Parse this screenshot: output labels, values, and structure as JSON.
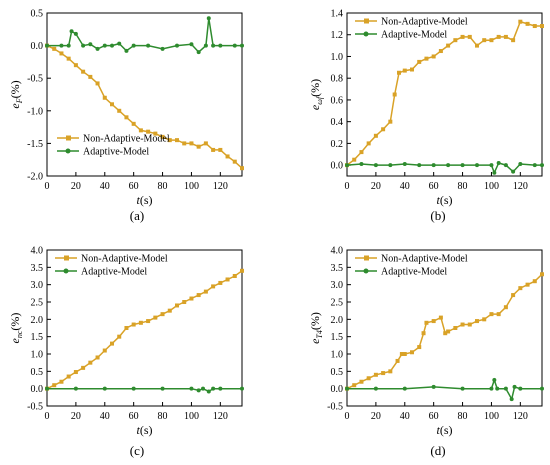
{
  "chart_data": [
    {
      "type": "line",
      "caption": "(a)",
      "ylabel_main": "e",
      "ylabel_sub": "F",
      "ylabel_suffix": "(%)",
      "xlabel_main": "t",
      "xlabel_suffix": "(s)",
      "xlim": [
        0,
        135
      ],
      "ylim": [
        -2.0,
        0.5
      ],
      "xticks": [
        0,
        20,
        40,
        60,
        80,
        100,
        120
      ],
      "yticks": [
        0.5,
        0.0,
        -0.5,
        -1.0,
        -1.5,
        -2.0
      ],
      "ytick_labels": [
        "0.5",
        "0.0",
        "-0.5",
        "-1.0",
        "-1.5",
        "-2.0"
      ],
      "legend_position": "bottom-left",
      "series": [
        {
          "name": "Non-Adaptive-Model",
          "color": "#D9A227",
          "marker": "square",
          "x": [
            0,
            5,
            10,
            15,
            20,
            25,
            30,
            35,
            40,
            45,
            50,
            55,
            60,
            65,
            70,
            75,
            80,
            85,
            90,
            95,
            100,
            105,
            110,
            115,
            120,
            125,
            130,
            135
          ],
          "y": [
            0.0,
            -0.05,
            -0.12,
            -0.2,
            -0.3,
            -0.4,
            -0.48,
            -0.58,
            -0.8,
            -0.9,
            -1.0,
            -1.1,
            -1.2,
            -1.3,
            -1.32,
            -1.35,
            -1.4,
            -1.45,
            -1.45,
            -1.5,
            -1.5,
            -1.55,
            -1.5,
            -1.6,
            -1.6,
            -1.7,
            -1.78,
            -1.88
          ]
        },
        {
          "name": "Adaptive-Model",
          "color": "#2E8B2E",
          "marker": "circle",
          "x": [
            0,
            10,
            15,
            17,
            20,
            25,
            30,
            35,
            40,
            45,
            50,
            55,
            60,
            70,
            80,
            90,
            100,
            105,
            110,
            112,
            115,
            120,
            130,
            135
          ],
          "y": [
            0.0,
            0.0,
            0.0,
            0.22,
            0.18,
            0.0,
            0.02,
            -0.05,
            0.0,
            0.0,
            0.03,
            -0.08,
            0.0,
            0.0,
            -0.05,
            0.0,
            0.02,
            -0.1,
            0.0,
            0.42,
            0.0,
            0.0,
            0.0,
            0.0
          ]
        }
      ]
    },
    {
      "type": "line",
      "caption": "(b)",
      "ylabel_main": "e",
      "ylabel_sub": "ωf",
      "ylabel_suffix": "(%)",
      "xlabel_main": "t",
      "xlabel_suffix": "(s)",
      "xlim": [
        0,
        135
      ],
      "ylim": [
        -0.1,
        1.4
      ],
      "xticks": [
        0,
        20,
        40,
        60,
        80,
        100,
        120
      ],
      "yticks": [
        0.0,
        0.2,
        0.4,
        0.6,
        0.8,
        1.0,
        1.2,
        1.4
      ],
      "ytick_labels": [
        "0.0",
        "0.2",
        "0.4",
        "0.6",
        "0.8",
        "1.0",
        "1.2",
        "1.4"
      ],
      "legend_position": "top-left",
      "series": [
        {
          "name": "Non-Adaptive-Model",
          "color": "#D9A227",
          "marker": "square",
          "x": [
            0,
            5,
            10,
            15,
            20,
            25,
            30,
            33,
            36,
            40,
            45,
            50,
            55,
            60,
            65,
            70,
            75,
            80,
            85,
            90,
            95,
            100,
            105,
            110,
            115,
            120,
            125,
            130,
            135
          ],
          "y": [
            0.0,
            0.05,
            0.12,
            0.2,
            0.27,
            0.33,
            0.4,
            0.65,
            0.85,
            0.87,
            0.88,
            0.95,
            0.98,
            1.0,
            1.05,
            1.1,
            1.15,
            1.18,
            1.18,
            1.1,
            1.15,
            1.15,
            1.18,
            1.18,
            1.15,
            1.32,
            1.3,
            1.28,
            1.28
          ]
        },
        {
          "name": "Adaptive-Model",
          "color": "#2E8B2E",
          "marker": "circle",
          "x": [
            0,
            10,
            20,
            30,
            40,
            50,
            60,
            70,
            80,
            90,
            100,
            102,
            105,
            110,
            115,
            120,
            130,
            135
          ],
          "y": [
            0.0,
            0.01,
            0.0,
            0.0,
            0.01,
            0.0,
            0.0,
            0.0,
            0.0,
            0.0,
            0.0,
            -0.07,
            0.02,
            0.0,
            -0.06,
            0.01,
            0.0,
            0.0
          ]
        }
      ]
    },
    {
      "type": "line",
      "caption": "(c)",
      "ylabel_main": "e",
      "ylabel_sub": "nc",
      "ylabel_suffix": "(%)",
      "xlabel_main": "t",
      "xlabel_suffix": "(s)",
      "xlim": [
        0,
        135
      ],
      "ylim": [
        -0.5,
        4.0
      ],
      "xticks": [
        0,
        20,
        40,
        60,
        80,
        100,
        120
      ],
      "yticks": [
        -0.5,
        0.0,
        0.5,
        1.0,
        1.5,
        2.0,
        2.5,
        3.0,
        3.5,
        4.0
      ],
      "ytick_labels": [
        "-0.5",
        "0.0",
        "0.5",
        "1.0",
        "1.5",
        "2.0",
        "2.5",
        "3.0",
        "3.5",
        "4.0"
      ],
      "legend_position": "top-left",
      "series": [
        {
          "name": "Non-Adaptive-Model",
          "color": "#D9A227",
          "marker": "square",
          "x": [
            0,
            5,
            10,
            15,
            20,
            25,
            30,
            35,
            40,
            45,
            50,
            55,
            60,
            65,
            70,
            75,
            80,
            85,
            90,
            95,
            100,
            105,
            110,
            115,
            120,
            125,
            130,
            135
          ],
          "y": [
            0.0,
            0.1,
            0.2,
            0.35,
            0.48,
            0.6,
            0.75,
            0.9,
            1.1,
            1.3,
            1.5,
            1.75,
            1.85,
            1.9,
            1.95,
            2.05,
            2.15,
            2.25,
            2.4,
            2.5,
            2.6,
            2.7,
            2.8,
            2.95,
            3.05,
            3.15,
            3.25,
            3.4
          ]
        },
        {
          "name": "Adaptive-Model",
          "color": "#2E8B2E",
          "marker": "circle",
          "x": [
            0,
            20,
            40,
            60,
            80,
            100,
            105,
            108,
            112,
            115,
            120,
            135
          ],
          "y": [
            0.0,
            0.0,
            0.0,
            0.0,
            0.0,
            0.0,
            -0.05,
            0.0,
            -0.08,
            0.0,
            0.0,
            0.0
          ]
        }
      ]
    },
    {
      "type": "line",
      "caption": "(d)",
      "ylabel_main": "e",
      "ylabel_sub": "T4",
      "ylabel_suffix": "(%)",
      "xlabel_main": "t",
      "xlabel_suffix": "(s)",
      "xlim": [
        0,
        135
      ],
      "ylim": [
        -0.5,
        4.0
      ],
      "xticks": [
        0,
        20,
        40,
        60,
        80,
        100,
        120
      ],
      "yticks": [
        -0.5,
        0.0,
        0.5,
        1.0,
        1.5,
        2.0,
        2.5,
        3.0,
        3.5,
        4.0
      ],
      "ytick_labels": [
        "-0.5",
        "0.0",
        "0.5",
        "1.0",
        "1.5",
        "2.0",
        "2.5",
        "3.0",
        "3.5",
        "4.0"
      ],
      "legend_position": "top-left",
      "series": [
        {
          "name": "Non-Adaptive-Model",
          "color": "#D9A227",
          "marker": "square",
          "x": [
            0,
            5,
            10,
            15,
            20,
            25,
            30,
            35,
            38,
            40,
            45,
            50,
            53,
            55,
            60,
            65,
            68,
            70,
            75,
            80,
            85,
            90,
            95,
            100,
            105,
            110,
            115,
            120,
            125,
            130,
            135
          ],
          "y": [
            0.0,
            0.1,
            0.2,
            0.3,
            0.4,
            0.45,
            0.5,
            0.8,
            1.0,
            1.0,
            1.05,
            1.2,
            1.6,
            1.9,
            1.95,
            2.05,
            1.6,
            1.65,
            1.75,
            1.85,
            1.85,
            1.95,
            2.0,
            2.15,
            2.15,
            2.35,
            2.7,
            2.9,
            3.0,
            3.1,
            3.3
          ]
        },
        {
          "name": "Adaptive-Model",
          "color": "#2E8B2E",
          "marker": "circle",
          "x": [
            0,
            20,
            40,
            60,
            80,
            100,
            102,
            104,
            110,
            114,
            116,
            120,
            135
          ],
          "y": [
            0.0,
            0.0,
            0.0,
            0.05,
            0.0,
            0.0,
            0.25,
            0.0,
            0.0,
            -0.3,
            0.05,
            0.0,
            0.0
          ]
        }
      ]
    }
  ]
}
